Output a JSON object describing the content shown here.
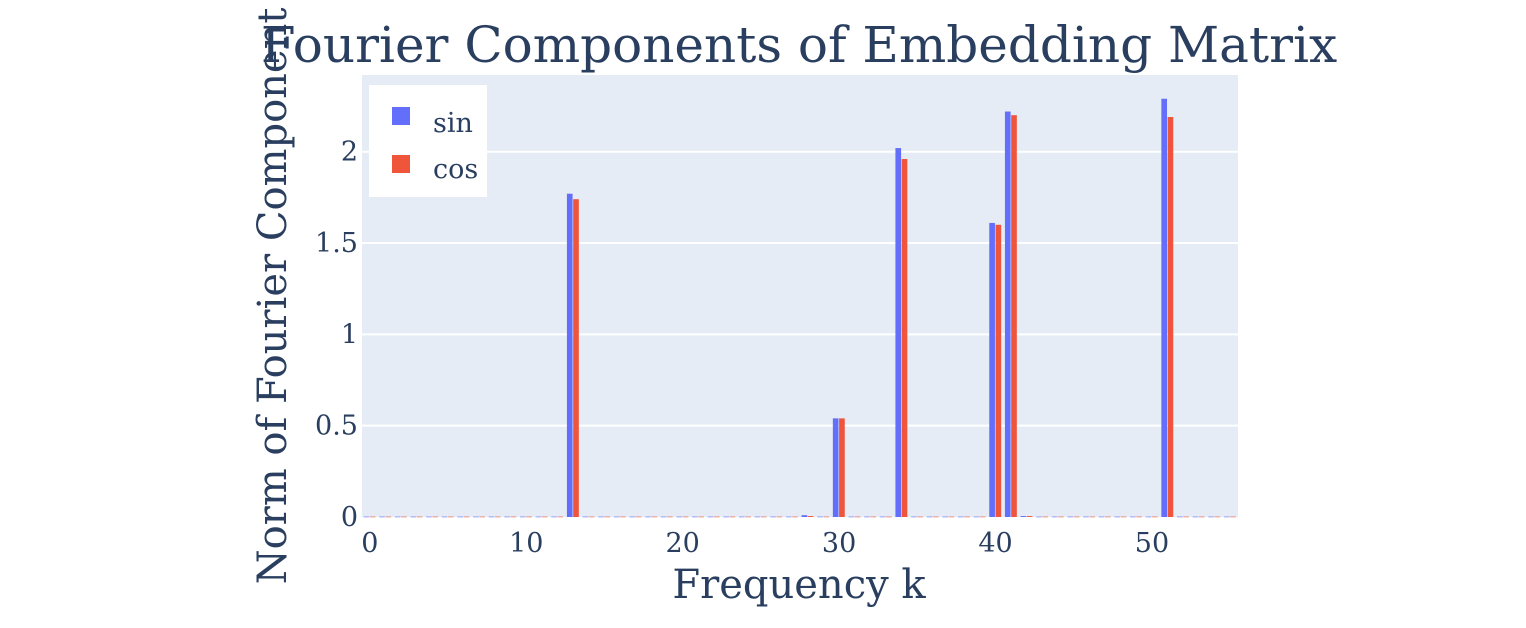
{
  "chart_data": {
    "type": "bar",
    "title": "Fourier Components of Embedding Matrix",
    "xlabel": "Frequency k",
    "ylabel": "Norm of Fourier Component",
    "xlim": [
      -0.5,
      55.5
    ],
    "ylim": [
      0,
      2.42
    ],
    "xticks": [
      "0",
      "10",
      "20",
      "30",
      "40",
      "50"
    ],
    "yticks": [
      "0",
      "0.5",
      "1",
      "1.5",
      "2"
    ],
    "grid": true,
    "legend_position": "top-left",
    "series": [
      {
        "name": "sin",
        "color": "#636efa",
        "peaks": {
          "13": 1.77,
          "28": 0.01,
          "30": 0.54,
          "34": 2.02,
          "40": 1.61,
          "41": 2.22,
          "42": 0.005,
          "51": 2.29
        },
        "baseline": 0.002
      },
      {
        "name": "cos",
        "color": "#ef553b",
        "peaks": {
          "13": 1.74,
          "28": 0.005,
          "30": 0.54,
          "34": 1.96,
          "40": 1.6,
          "41": 2.2,
          "42": 0.005,
          "51": 2.19
        },
        "baseline": 0.002
      }
    ]
  }
}
